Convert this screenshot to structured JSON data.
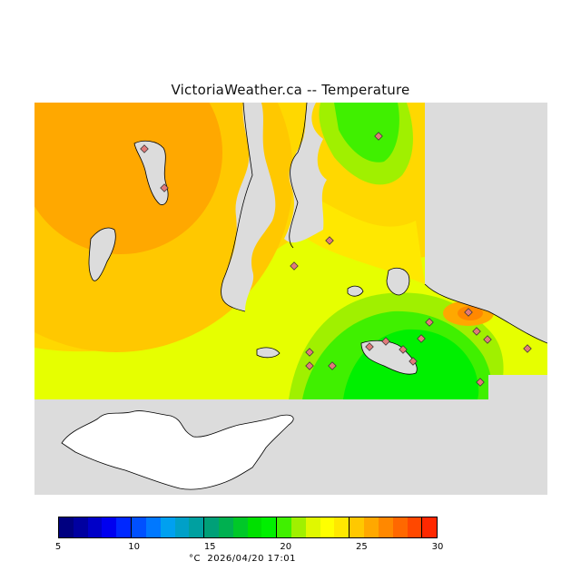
{
  "title": "VictoriaWeather.ca -- Temperature",
  "legend": {
    "units": "°C",
    "timestamp": "2026/04/20 17:01",
    "tick_labels": [
      "5",
      "10",
      "15",
      "20",
      "25",
      "30"
    ],
    "colors": [
      "#000080",
      "#0000a0",
      "#0000c8",
      "#0000f0",
      "#0028ff",
      "#0050ff",
      "#0078ff",
      "#00a0f0",
      "#00a0c8",
      "#00a0a0",
      "#00a078",
      "#00b050",
      "#00c828",
      "#00e000",
      "#00f000",
      "#40f000",
      "#a0f000",
      "#e0f800",
      "#ffff00",
      "#ffe800",
      "#ffc800",
      "#ffa800",
      "#ff8800",
      "#ff6800",
      "#ff4800",
      "#ff2800"
    ]
  },
  "map": {
    "background_color": "#dcdcdc",
    "land_color": "#ffffff",
    "station_marker_color": "#e07a7a"
  }
}
